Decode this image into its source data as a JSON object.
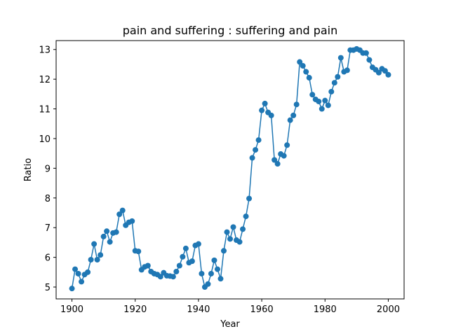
{
  "chart_data": {
    "type": "line",
    "title": "pain and suffering : suffering and pain",
    "xlabel": "Year",
    "ylabel": "Ratio",
    "xlim": [
      1895,
      2005
    ],
    "ylim": [
      4.6,
      13.3
    ],
    "xticks": [
      1900,
      1920,
      1940,
      1960,
      1980,
      2000
    ],
    "yticks": [
      5,
      6,
      7,
      8,
      9,
      10,
      11,
      12,
      13
    ],
    "grid": false,
    "color": "#1f77b4",
    "markers": true,
    "series": [
      {
        "x": [
          1900,
          1901,
          1902,
          1903,
          1904,
          1905,
          1906,
          1907,
          1908,
          1909,
          1910,
          1911,
          1912,
          1913,
          1914,
          1915,
          1916,
          1917,
          1918,
          1919,
          1920,
          1921,
          1922,
          1923,
          1924,
          1925,
          1926,
          1927,
          1928,
          1929,
          1930,
          1931,
          1932,
          1933,
          1934,
          1935,
          1936,
          1937,
          1938,
          1939,
          1940,
          1941,
          1942,
          1943,
          1944,
          1945,
          1946,
          1947,
          1948,
          1949,
          1950,
          1951,
          1952,
          1953,
          1954,
          1955,
          1956,
          1957,
          1958,
          1959,
          1960,
          1961,
          1962,
          1963,
          1964,
          1965,
          1966,
          1967,
          1968,
          1969,
          1970,
          1971,
          1972,
          1973,
          1974,
          1975,
          1976,
          1977,
          1978,
          1979,
          1980,
          1981,
          1982,
          1983,
          1984,
          1985,
          1986,
          1987,
          1988,
          1989,
          1990,
          1991,
          1992,
          1993,
          1994,
          1995,
          1996,
          1997,
          1998,
          1999,
          2000
        ],
        "y": [
          4.95,
          5.6,
          5.45,
          5.18,
          5.42,
          5.5,
          5.92,
          6.45,
          5.92,
          6.08,
          6.7,
          6.88,
          6.52,
          6.82,
          6.85,
          7.45,
          7.58,
          7.08,
          7.18,
          7.22,
          6.22,
          6.2,
          5.58,
          5.68,
          5.72,
          5.52,
          5.45,
          5.42,
          5.35,
          5.48,
          5.38,
          5.37,
          5.35,
          5.52,
          5.72,
          6.02,
          6.3,
          5.82,
          5.87,
          6.4,
          6.45,
          5.45,
          5.0,
          5.1,
          5.45,
          5.9,
          5.6,
          5.28,
          6.22,
          6.85,
          6.62,
          7.02,
          6.58,
          6.52,
          6.95,
          7.38,
          7.98,
          9.35,
          9.62,
          9.95,
          10.95,
          11.18,
          10.88,
          10.78,
          9.28,
          9.15,
          9.48,
          9.42,
          9.78,
          10.62,
          10.78,
          11.15,
          12.58,
          12.45,
          12.25,
          12.05,
          11.48,
          11.32,
          11.25,
          11.0,
          11.28,
          11.12,
          11.58,
          11.88,
          12.08,
          12.72,
          12.25,
          12.3,
          12.98,
          12.98,
          13.02,
          12.98,
          12.88,
          12.88,
          12.65,
          12.4,
          12.32,
          12.22,
          12.35,
          12.28,
          12.15
        ]
      }
    ]
  }
}
